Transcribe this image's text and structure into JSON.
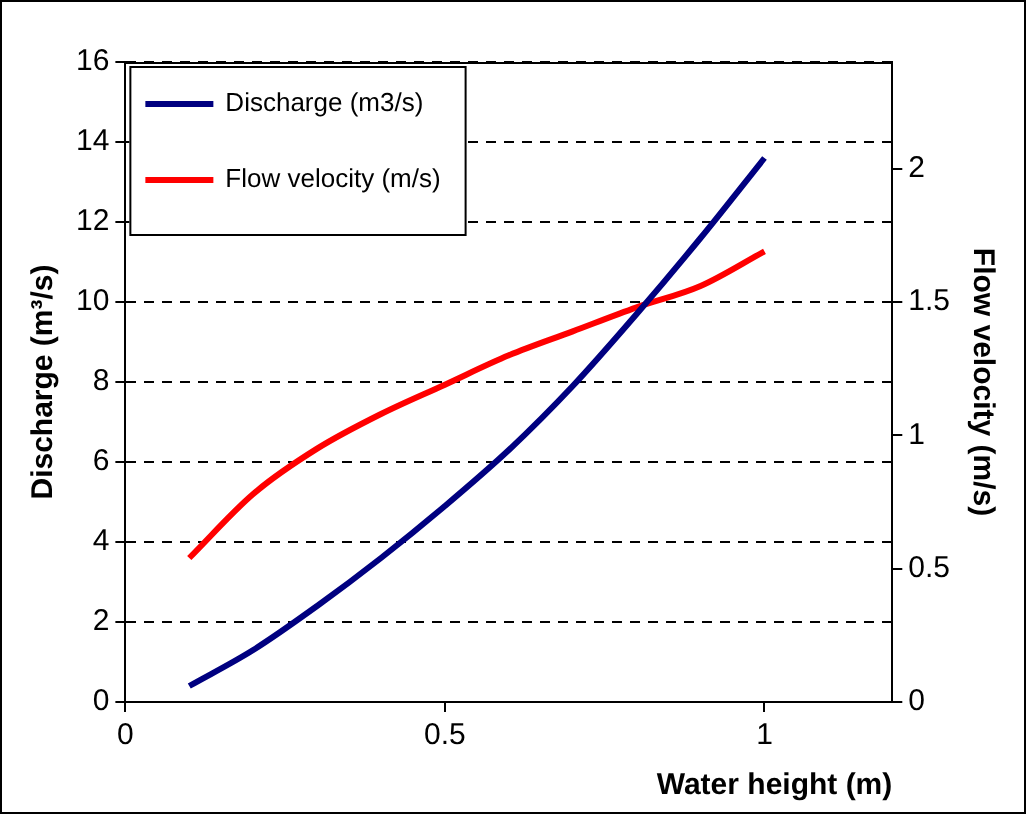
{
  "chart_data": {
    "type": "line",
    "xlabel": "Water height (m)",
    "ylabel": "Discharge (m³/s)",
    "y2label": "Flow velocity (m/s)",
    "xlim": [
      0,
      1.2
    ],
    "xticks": [
      0,
      0.5,
      1
    ],
    "ylim": [
      0,
      16
    ],
    "yticks": [
      0,
      2,
      4,
      6,
      8,
      10,
      12,
      14,
      16
    ],
    "y2lim": [
      0,
      2.4
    ],
    "y2ticks": [
      0,
      0.5,
      1,
      1.5,
      2
    ],
    "x": [
      0.1,
      0.2,
      0.3,
      0.4,
      0.5,
      0.6,
      0.7,
      0.8,
      0.9,
      1.0
    ],
    "series": [
      {
        "name": "Discharge (m3/s)",
        "color": "#000080",
        "values": [
          0.4,
          1.3,
          2.4,
          3.6,
          4.9,
          6.3,
          7.9,
          9.7,
          11.6,
          13.6
        ]
      },
      {
        "name": "Flow velocity (m/s)",
        "color": "#ff0000",
        "axis": "y2",
        "values": [
          0.54,
          0.78,
          0.95,
          1.08,
          1.19,
          1.3,
          1.39,
          1.48,
          1.56,
          1.69
        ]
      }
    ],
    "grid": "y",
    "line_style": "solid",
    "marker": "none",
    "legend": "top left"
  }
}
